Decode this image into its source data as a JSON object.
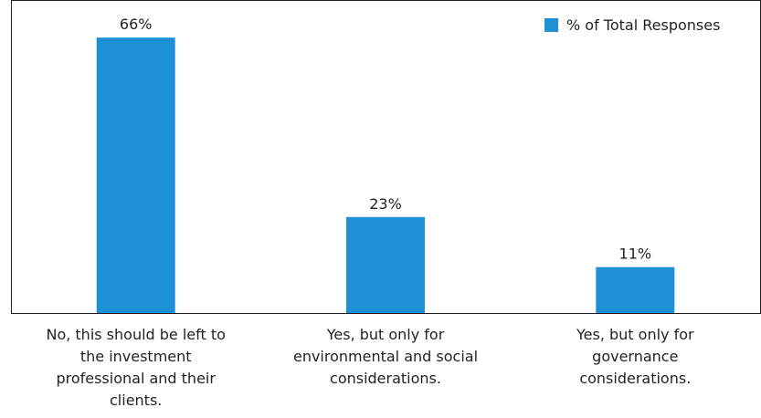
{
  "chart_data": {
    "type": "bar",
    "categories": [
      "No, this should be left to the investment professional and their clients.",
      "Yes, but only for environmental and social considerations.",
      "Yes, but only for governance considerations."
    ],
    "category_label_lines": [
      [
        "No, this should be left to",
        "the investment",
        "professional and their",
        "clients."
      ],
      [
        "Yes, but only for",
        "environmental and social",
        "considerations."
      ],
      [
        "Yes, but only for",
        "governance",
        "considerations."
      ]
    ],
    "series": [
      {
        "name": "% of Total Responses",
        "values": [
          66,
          23,
          11
        ],
        "labels": [
          "66%",
          "23%",
          "11%"
        ]
      }
    ],
    "ylim": [
      0,
      75
    ],
    "grid": false,
    "legend": "top-right",
    "colors": {
      "bar": "#1e90d6",
      "frame": "#231f20",
      "text": "#231f20"
    }
  }
}
